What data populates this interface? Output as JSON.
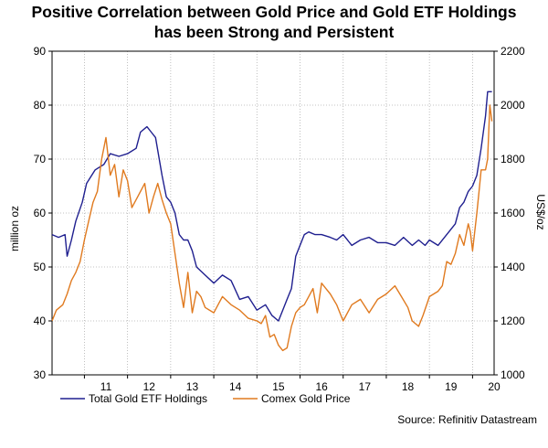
{
  "chart_data": {
    "type": "line",
    "title_line1": "Positive Correlation between Gold Price and Gold ETF Holdings",
    "title_line2": "has been Strong and Persistent",
    "ylabel_left": "million oz",
    "ylabel_right": "US$/oz",
    "source": "Source: Refinitiv Datastream",
    "x_ticks": [
      "11",
      "12",
      "13",
      "14",
      "15",
      "16",
      "17",
      "18",
      "19",
      "20"
    ],
    "y_left_ticks": [
      "30",
      "40",
      "50",
      "60",
      "70",
      "80",
      "90"
    ],
    "y_right_ticks": [
      "1000",
      "1200",
      "1400",
      "1600",
      "1800",
      "2000",
      "2200"
    ],
    "xlim": [
      2010.25,
      2020.5
    ],
    "ylim_left": [
      30,
      90
    ],
    "ylim_right": [
      1000,
      2200
    ],
    "grid": true,
    "legend_position": "bottom-left",
    "series": [
      {
        "name": "Total Gold ETF Holdings",
        "axis": "left",
        "color": "#1f1f8f",
        "x": [
          2010.25,
          2010.4,
          2010.55,
          2010.6,
          2010.7,
          2010.8,
          2010.95,
          2011.05,
          2011.25,
          2011.45,
          2011.6,
          2011.8,
          2012.0,
          2012.2,
          2012.3,
          2012.45,
          2012.55,
          2012.65,
          2012.8,
          2012.9,
          2013.0,
          2013.1,
          2013.2,
          2013.3,
          2013.4,
          2013.5,
          2013.6,
          2013.8,
          2014.0,
          2014.2,
          2014.4,
          2014.6,
          2014.8,
          2015.0,
          2015.2,
          2015.35,
          2015.5,
          2015.6,
          2015.7,
          2015.8,
          2015.9,
          2016.0,
          2016.1,
          2016.2,
          2016.35,
          2016.5,
          2016.7,
          2016.85,
          2017.0,
          2017.2,
          2017.4,
          2017.6,
          2017.8,
          2018.0,
          2018.2,
          2018.4,
          2018.6,
          2018.75,
          2018.9,
          2019.0,
          2019.2,
          2019.4,
          2019.5,
          2019.6,
          2019.7,
          2019.8,
          2019.9,
          2020.0,
          2020.1,
          2020.2,
          2020.3,
          2020.35,
          2020.45
        ],
        "values": [
          56,
          55.5,
          56,
          52,
          55,
          58.5,
          62,
          65.5,
          68,
          69,
          71,
          70.5,
          71,
          72,
          75,
          76,
          75,
          74,
          67,
          63,
          62,
          60,
          56,
          55,
          55,
          53,
          50,
          48.5,
          47,
          48.5,
          47.5,
          44,
          44.5,
          42,
          43,
          41,
          40,
          42,
          44,
          46,
          52,
          54,
          56,
          56.5,
          56,
          56,
          55.5,
          55,
          56,
          54,
          55,
          55.5,
          54.5,
          54.5,
          54,
          55.5,
          54,
          55,
          54,
          55,
          54,
          56,
          57,
          58,
          61,
          62,
          64,
          65,
          67,
          72,
          78,
          82.5,
          82.5
        ]
      },
      {
        "name": "Comex Gold Price",
        "axis": "right",
        "color": "#e07a1f",
        "x": [
          2010.25,
          2010.35,
          2010.5,
          2010.6,
          2010.7,
          2010.8,
          2010.9,
          2011.0,
          2011.1,
          2011.2,
          2011.3,
          2011.4,
          2011.5,
          2011.6,
          2011.7,
          2011.8,
          2011.9,
          2012.0,
          2012.1,
          2012.2,
          2012.3,
          2012.4,
          2012.5,
          2012.6,
          2012.7,
          2012.8,
          2012.9,
          2013.0,
          2013.1,
          2013.2,
          2013.3,
          2013.4,
          2013.5,
          2013.6,
          2013.7,
          2013.8,
          2014.0,
          2014.2,
          2014.4,
          2014.6,
          2014.8,
          2015.0,
          2015.1,
          2015.2,
          2015.3,
          2015.4,
          2015.5,
          2015.6,
          2015.7,
          2015.8,
          2015.9,
          2016.0,
          2016.1,
          2016.2,
          2016.3,
          2016.4,
          2016.5,
          2016.6,
          2016.7,
          2016.85,
          2017.0,
          2017.2,
          2017.4,
          2017.6,
          2017.8,
          2018.0,
          2018.2,
          2018.35,
          2018.5,
          2018.6,
          2018.75,
          2018.85,
          2019.0,
          2019.1,
          2019.2,
          2019.3,
          2019.4,
          2019.5,
          2019.6,
          2019.7,
          2019.8,
          2019.9,
          2019.95,
          2020.0,
          2020.1,
          2020.15,
          2020.2,
          2020.3,
          2020.35,
          2020.4,
          2020.45
        ],
        "values": [
          1200,
          1240,
          1260,
          1300,
          1350,
          1380,
          1420,
          1500,
          1570,
          1640,
          1680,
          1800,
          1880,
          1740,
          1780,
          1660,
          1760,
          1720,
          1620,
          1650,
          1680,
          1710,
          1600,
          1660,
          1710,
          1650,
          1600,
          1560,
          1450,
          1340,
          1250,
          1380,
          1230,
          1310,
          1290,
          1250,
          1230,
          1290,
          1260,
          1240,
          1210,
          1200,
          1190,
          1220,
          1140,
          1150,
          1110,
          1090,
          1100,
          1180,
          1230,
          1250,
          1260,
          1290,
          1320,
          1230,
          1340,
          1320,
          1300,
          1260,
          1200,
          1260,
          1280,
          1230,
          1280,
          1300,
          1330,
          1290,
          1250,
          1200,
          1180,
          1220,
          1290,
          1300,
          1310,
          1330,
          1420,
          1410,
          1450,
          1520,
          1480,
          1560,
          1530,
          1460,
          1600,
          1680,
          1760,
          1760,
          1800,
          2000,
          1940
        ]
      }
    ]
  }
}
